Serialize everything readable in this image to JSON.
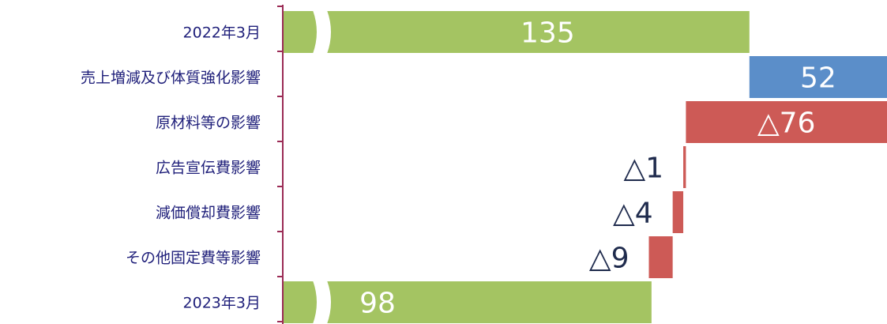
{
  "chart_data": {
    "type": "bar",
    "subtype": "horizontal-waterfall",
    "title": "",
    "xlabel": "",
    "ylabel": "",
    "categories": [
      "2022年3月",
      "売上増減及び体質強化影響",
      "原材料等の影響",
      "広告宣伝費影響",
      "減価償却費影響",
      "その他固定費等影響",
      "2023年3月"
    ],
    "values": [
      135,
      52,
      -76,
      -1,
      -4,
      -9,
      98
    ],
    "value_labels": [
      "135",
      "52",
      "△76",
      "△1",
      "△4",
      "△9",
      "98"
    ],
    "kinds": [
      "total",
      "increase",
      "decrease",
      "decrease",
      "decrease",
      "decrease",
      "total"
    ],
    "axis_break_on_totals": true,
    "grid": false,
    "legend": "none",
    "colors": {
      "total": "#a4c462",
      "increase": "#5b8ec9",
      "decrease": "#cd5a56",
      "axis": "#9b2b55",
      "category_text": "#1f1f7a",
      "label_on_bar": "#ffffff",
      "label_outside": "#1f2b4d"
    }
  }
}
